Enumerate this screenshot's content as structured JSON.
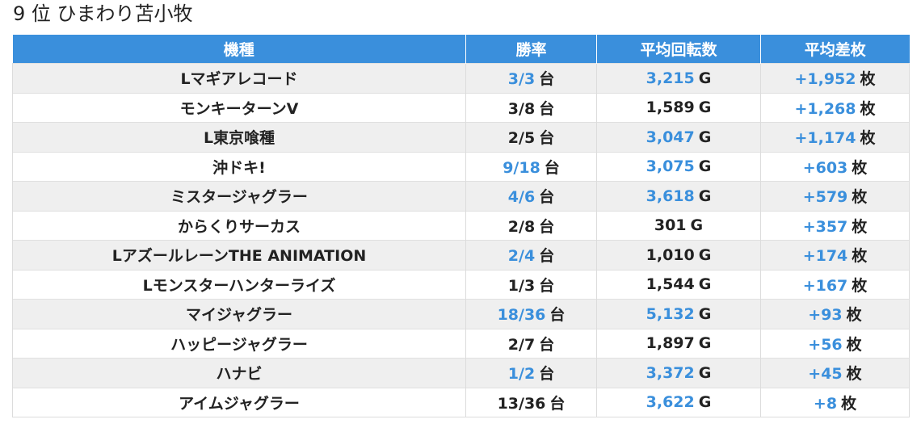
{
  "title": "9 位 ひまわり苫小牧",
  "headers": [
    "機種",
    "勝率",
    "平均回転数",
    "平均差枚"
  ],
  "units": {
    "rate": "台",
    "spins": "G",
    "diff": "枚"
  },
  "colors": {
    "header_bg": "#3a8fdc",
    "highlight": "#3a8fdc",
    "text": "#222222"
  },
  "rows": [
    {
      "model": "Lマギアレコード",
      "rate": "3/3",
      "rate_hl": true,
      "spins": "3,215",
      "spins_hl": true,
      "diff": "+1,952",
      "diff_hl": true
    },
    {
      "model": "モンキーターンV",
      "rate": "3/8",
      "rate_hl": false,
      "spins": "1,589",
      "spins_hl": false,
      "diff": "+1,268",
      "diff_hl": true
    },
    {
      "model": "L東京喰種",
      "rate": "2/5",
      "rate_hl": false,
      "spins": "3,047",
      "spins_hl": true,
      "diff": "+1,174",
      "diff_hl": true
    },
    {
      "model": "沖ドキ!",
      "rate": "9/18",
      "rate_hl": true,
      "spins": "3,075",
      "spins_hl": true,
      "diff": "+603",
      "diff_hl": true
    },
    {
      "model": "ミスタージャグラー",
      "rate": "4/6",
      "rate_hl": true,
      "spins": "3,618",
      "spins_hl": true,
      "diff": "+579",
      "diff_hl": true
    },
    {
      "model": "からくりサーカス",
      "rate": "2/8",
      "rate_hl": false,
      "spins": "301",
      "spins_hl": false,
      "diff": "+357",
      "diff_hl": true
    },
    {
      "model": "LアズールレーンTHE ANIMATION",
      "rate": "2/4",
      "rate_hl": true,
      "spins": "1,010",
      "spins_hl": false,
      "diff": "+174",
      "diff_hl": true
    },
    {
      "model": "Lモンスターハンターライズ",
      "rate": "1/3",
      "rate_hl": false,
      "spins": "1,544",
      "spins_hl": false,
      "diff": "+167",
      "diff_hl": true
    },
    {
      "model": "マイジャグラー",
      "rate": "18/36",
      "rate_hl": true,
      "spins": "5,132",
      "spins_hl": true,
      "diff": "+93",
      "diff_hl": true
    },
    {
      "model": "ハッピージャグラー",
      "rate": "2/7",
      "rate_hl": false,
      "spins": "1,897",
      "spins_hl": false,
      "diff": "+56",
      "diff_hl": true
    },
    {
      "model": "ハナビ",
      "rate": "1/2",
      "rate_hl": true,
      "spins": "3,372",
      "spins_hl": true,
      "diff": "+45",
      "diff_hl": true
    },
    {
      "model": "アイムジャグラー",
      "rate": "13/36",
      "rate_hl": false,
      "spins": "3,622",
      "spins_hl": true,
      "diff": "+8",
      "diff_hl": true
    }
  ]
}
